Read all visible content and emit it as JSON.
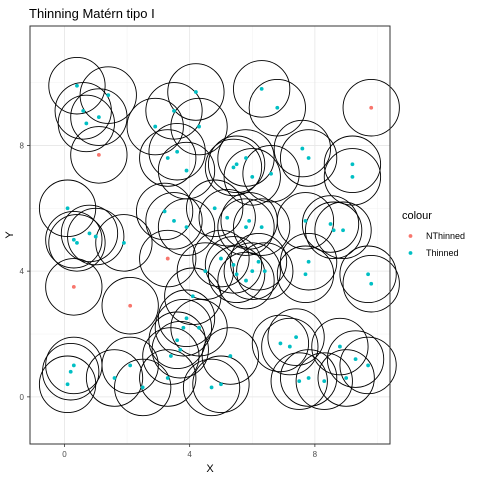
{
  "chart_data": {
    "type": "scatter",
    "title": "Thinning Matérn tipo I",
    "xlabel": "X",
    "ylabel": "Y",
    "xlim": [
      -1.1,
      10.4
    ],
    "ylim": [
      -1.5,
      11.8
    ],
    "x_ticks": [
      0,
      4,
      8
    ],
    "y_ticks": [
      0,
      4,
      8
    ],
    "grid": true,
    "circle_radius": 0.9,
    "legend": {
      "title": "colour",
      "placement": "right",
      "entries": [
        {
          "name": "NThinned",
          "color": "#F8766D"
        },
        {
          "name": "Thinned",
          "color": "#00BFC4"
        }
      ]
    },
    "series": [
      {
        "name": "NThinned",
        "color": "#F8766D",
        "points": [
          [
            9.8,
            9.2
          ],
          [
            1.1,
            7.7
          ],
          [
            3.3,
            4.4
          ],
          [
            0.3,
            3.5
          ],
          [
            2.1,
            2.9
          ]
        ]
      },
      {
        "name": "Thinned",
        "color": "#00BFC4",
        "points": [
          [
            0.4,
            9.9
          ],
          [
            0.6,
            9.1
          ],
          [
            0.7,
            8.7
          ],
          [
            1.1,
            8.9
          ],
          [
            1.4,
            9.6
          ],
          [
            2.9,
            8.6
          ],
          [
            3.5,
            9.1
          ],
          [
            4.2,
            9.7
          ],
          [
            4.3,
            8.6
          ],
          [
            6.3,
            9.8
          ],
          [
            6.8,
            9.2
          ],
          [
            3.3,
            7.6
          ],
          [
            3.6,
            7.8
          ],
          [
            3.9,
            7.2
          ],
          [
            5.4,
            7.3
          ],
          [
            5.5,
            7.4
          ],
          [
            5.8,
            7.6
          ],
          [
            6.0,
            7.0
          ],
          [
            6.6,
            7.1
          ],
          [
            7.6,
            7.9
          ],
          [
            7.8,
            7.6
          ],
          [
            9.2,
            7.4
          ],
          [
            9.2,
            7.0
          ],
          [
            0.1,
            6.0
          ],
          [
            3.2,
            5.9
          ],
          [
            3.5,
            5.6
          ],
          [
            3.9,
            5.4
          ],
          [
            4.8,
            6.0
          ],
          [
            5.2,
            5.7
          ],
          [
            5.8,
            5.4
          ],
          [
            5.9,
            5.6
          ],
          [
            6.3,
            5.4
          ],
          [
            7.7,
            5.6
          ],
          [
            8.5,
            5.5
          ],
          [
            8.6,
            5.3
          ],
          [
            8.9,
            5.3
          ],
          [
            0.3,
            5.0
          ],
          [
            0.4,
            4.9
          ],
          [
            0.8,
            5.2
          ],
          [
            1.0,
            5.1
          ],
          [
            1.9,
            4.9
          ],
          [
            5.0,
            4.4
          ],
          [
            5.4,
            4.2
          ],
          [
            5.5,
            3.9
          ],
          [
            5.8,
            3.7
          ],
          [
            6.0,
            4.0
          ],
          [
            6.2,
            4.3
          ],
          [
            6.4,
            4.0
          ],
          [
            7.7,
            3.9
          ],
          [
            7.8,
            4.3
          ],
          [
            9.7,
            3.9
          ],
          [
            9.8,
            3.6
          ],
          [
            4.5,
            4.0
          ],
          [
            4.1,
            3.2
          ],
          [
            3.8,
            2.2
          ],
          [
            3.9,
            2.5
          ],
          [
            4.3,
            2.2
          ],
          [
            3.6,
            1.8
          ],
          [
            3.7,
            1.5
          ],
          [
            3.4,
            1.3
          ],
          [
            5.3,
            1.3
          ],
          [
            7.4,
            1.9
          ],
          [
            7.2,
            1.6
          ],
          [
            6.9,
            1.7
          ],
          [
            8.8,
            1.6
          ],
          [
            9.3,
            1.2
          ],
          [
            9.7,
            1.0
          ],
          [
            0.3,
            1.0
          ],
          [
            0.2,
            0.8
          ],
          [
            0.1,
            0.4
          ],
          [
            1.6,
            0.6
          ],
          [
            2.1,
            1.0
          ],
          [
            2.5,
            0.3
          ],
          [
            3.3,
            0.6
          ],
          [
            4.7,
            0.3
          ],
          [
            5.0,
            0.4
          ],
          [
            7.5,
            0.5
          ],
          [
            7.8,
            0.6
          ],
          [
            8.3,
            0.5
          ],
          [
            9.0,
            0.6
          ]
        ]
      }
    ]
  }
}
